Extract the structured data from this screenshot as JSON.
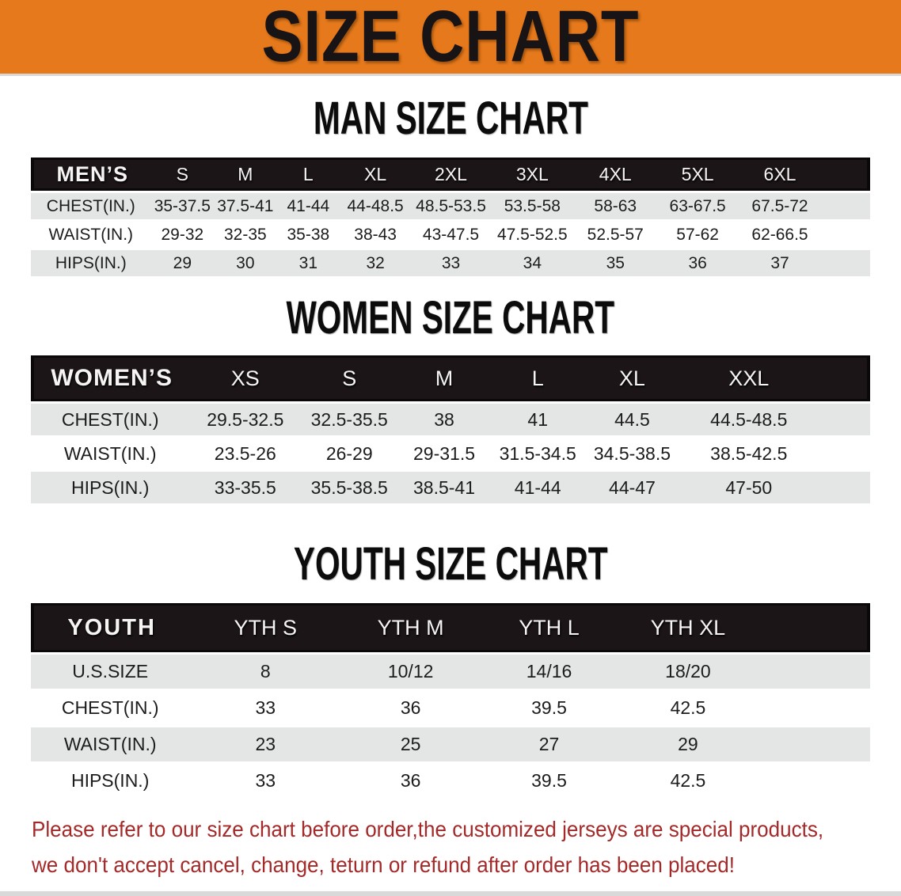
{
  "banner": {
    "title": "SIZE CHART"
  },
  "colors": {
    "banner_bg": "#e6791b",
    "banner_text": "#181314",
    "table_header_bg": "#1b1517",
    "shaded_row_bg": "#e4e5e5",
    "disclaimer_text": "#a42a2a"
  },
  "men": {
    "title": "MAN SIZE CHART",
    "corner_label": "MEN’S",
    "sizes": [
      "S",
      "M",
      "L",
      "XL",
      "2XL",
      "3XL",
      "4XL",
      "5XL",
      "6XL"
    ],
    "rows": [
      {
        "label": "CHEST(IN.)",
        "values": [
          "35-37.5",
          "37.5-41",
          "41-44",
          "44-48.5",
          "48.5-53.5",
          "53.5-58",
          "58-63",
          "63-67.5",
          "67.5-72"
        ]
      },
      {
        "label": "WAIST(IN.)",
        "values": [
          "29-32",
          "32-35",
          "35-38",
          "38-43",
          "43-47.5",
          "47.5-52.5",
          "52.5-57",
          "57-62",
          "62-66.5"
        ]
      },
      {
        "label": "HIPS(IN.)",
        "values": [
          "29",
          "30",
          "31",
          "32",
          "33",
          "34",
          "35",
          "36",
          "37"
        ]
      }
    ]
  },
  "women": {
    "title": "WOMEN SIZE CHART",
    "corner_label": "WOMEN’S",
    "sizes": [
      "XS",
      "S",
      "M",
      "L",
      "XL",
      "XXL"
    ],
    "rows": [
      {
        "label": "CHEST(IN.)",
        "values": [
          "29.5-32.5",
          "32.5-35.5",
          "38",
          "41",
          "44.5",
          "44.5-48.5"
        ]
      },
      {
        "label": "WAIST(IN.)",
        "values": [
          "23.5-26",
          "26-29",
          "29-31.5",
          "31.5-34.5",
          "34.5-38.5",
          "38.5-42.5"
        ]
      },
      {
        "label": "HIPS(IN.)",
        "values": [
          "33-35.5",
          "35.5-38.5",
          "38.5-41",
          "41-44",
          "44-47",
          "47-50"
        ]
      }
    ]
  },
  "youth": {
    "title": "YOUTH SIZE CHART",
    "corner_label": "YOUTH",
    "sizes": [
      "YTH S",
      "YTH M",
      "YTH L",
      "YTH XL"
    ],
    "rows": [
      {
        "label": "U.S.SIZE",
        "values": [
          "8",
          "10/12",
          "14/16",
          "18/20"
        ]
      },
      {
        "label": "CHEST(IN.)",
        "values": [
          "33",
          "36",
          "39.5",
          "42.5"
        ]
      },
      {
        "label": "WAIST(IN.)",
        "values": [
          "23",
          "25",
          "27",
          "29"
        ]
      },
      {
        "label": "HIPS(IN.)",
        "values": [
          "33",
          "36",
          "39.5",
          "42.5"
        ]
      }
    ]
  },
  "disclaimer": {
    "line1": "Please refer to our size chart before order,the customized jerseys are special products,",
    "line2": "we don't accept cancel, change, teturn or refund after order has been placed!"
  }
}
